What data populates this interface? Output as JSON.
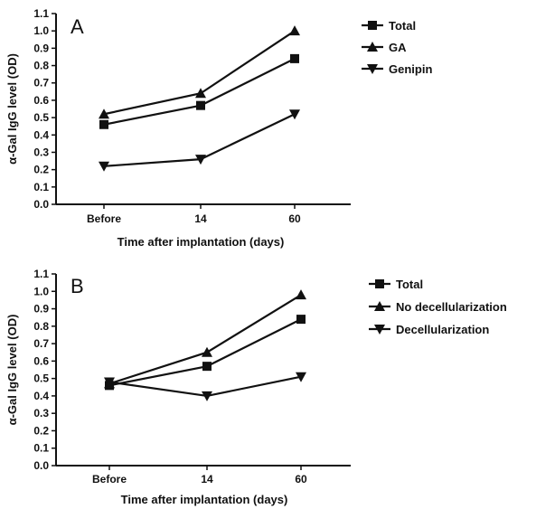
{
  "chart_data": [
    {
      "type": "line",
      "panel_label": "A",
      "categories": [
        "Before",
        "14",
        "60"
      ],
      "xlabel": "Time after implantation (days)",
      "ylabel": "α-Gal IgG level (OD)",
      "ylim": [
        0,
        1.1
      ],
      "yticks": [
        "0.0",
        "0.1",
        "0.2",
        "0.3",
        "0.4",
        "0.5",
        "0.6",
        "0.7",
        "0.8",
        "0.9",
        "1.0",
        "1.1"
      ],
      "legend_position": "right",
      "series": [
        {
          "name": "Total",
          "marker": "square",
          "values": [
            0.46,
            0.57,
            0.84
          ]
        },
        {
          "name": "GA",
          "marker": "triangle-up",
          "values": [
            0.52,
            0.64,
            1.0
          ]
        },
        {
          "name": "Genipin",
          "marker": "triangle-down",
          "values": [
            0.22,
            0.26,
            0.52
          ]
        }
      ]
    },
    {
      "type": "line",
      "panel_label": "B",
      "categories": [
        "Before",
        "14",
        "60"
      ],
      "xlabel": "Time after implantation (days)",
      "ylabel": "α-Gal IgG level (OD)",
      "ylim": [
        0,
        1.1
      ],
      "yticks": [
        "0.0",
        "0.1",
        "0.2",
        "0.3",
        "0.4",
        "0.5",
        "0.6",
        "0.7",
        "0.8",
        "0.9",
        "1.0",
        "1.1"
      ],
      "legend_position": "right",
      "series": [
        {
          "name": "Total",
          "marker": "square",
          "values": [
            0.46,
            0.57,
            0.84
          ]
        },
        {
          "name": "No decellularization",
          "marker": "triangle-up",
          "values": [
            0.47,
            0.65,
            0.98
          ]
        },
        {
          "name": "Decellularization",
          "marker": "triangle-down",
          "values": [
            0.48,
            0.4,
            0.51
          ]
        }
      ]
    }
  ]
}
